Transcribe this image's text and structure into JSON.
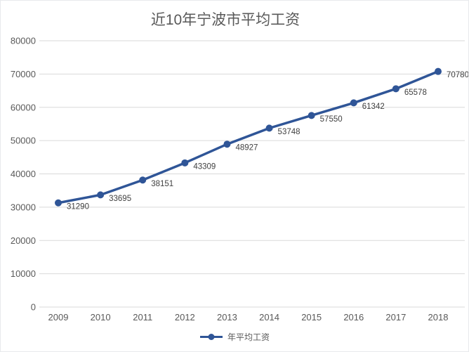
{
  "chart": {
    "title": "近10年宁波市平均工资",
    "legend_label": "年平均工资"
  },
  "chart_data": {
    "type": "line",
    "title": "近10年宁波市平均工资",
    "categories": [
      "2009",
      "2010",
      "2011",
      "2012",
      "2013",
      "2014",
      "2015",
      "2016",
      "2017",
      "2018"
    ],
    "series": [
      {
        "name": "年平均工资",
        "values": [
          31290,
          33695,
          38151,
          43309,
          48927,
          53748,
          57550,
          61342,
          65578,
          70780
        ]
      }
    ],
    "xlabel": "",
    "ylabel": "",
    "ylim": [
      0,
      80000
    ],
    "ytick_step": 10000,
    "grid": true,
    "legend_position": "bottom",
    "data_labels": true,
    "colors": {
      "line": "#2F5597",
      "marker": "#2F5597",
      "grid": "#D9D9D9",
      "tick_label": "#595959",
      "data_label": "#404040",
      "title": "#595959"
    }
  }
}
